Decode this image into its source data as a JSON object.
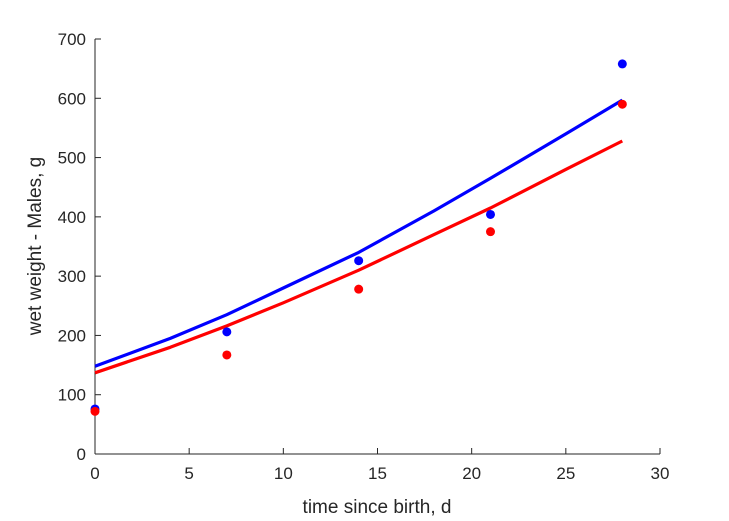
{
  "chart_data": {
    "type": "scatter",
    "title": "",
    "xlabel": "time since birth, d",
    "ylabel": "wet weight - Males, g",
    "xlim": [
      0,
      30
    ],
    "ylim": [
      0,
      700
    ],
    "xticks": [
      0,
      5,
      10,
      15,
      20,
      25,
      30
    ],
    "yticks": [
      0,
      100,
      200,
      300,
      400,
      500,
      600,
      700
    ],
    "grid": false,
    "legend": "none",
    "points": [
      {
        "color": "#0000ff",
        "x": [
          0,
          7,
          14,
          21,
          28
        ],
        "y": [
          76,
          206,
          326,
          404,
          658
        ]
      },
      {
        "color": "#ff0000",
        "x": [
          0,
          7,
          14,
          21,
          28
        ],
        "y": [
          72,
          167,
          278,
          375,
          590
        ]
      }
    ],
    "curves": [
      {
        "color": "#0000ff",
        "x": [
          0,
          4,
          7,
          10,
          14,
          18,
          21,
          25,
          28
        ],
        "y": [
          148,
          195,
          235,
          280,
          340,
          410,
          465,
          540,
          597
        ]
      },
      {
        "color": "#ff0000",
        "x": [
          0,
          4,
          7,
          10,
          14,
          18,
          21,
          25,
          28
        ],
        "y": [
          137,
          180,
          216,
          255,
          310,
          370,
          415,
          480,
          528
        ]
      }
    ]
  }
}
